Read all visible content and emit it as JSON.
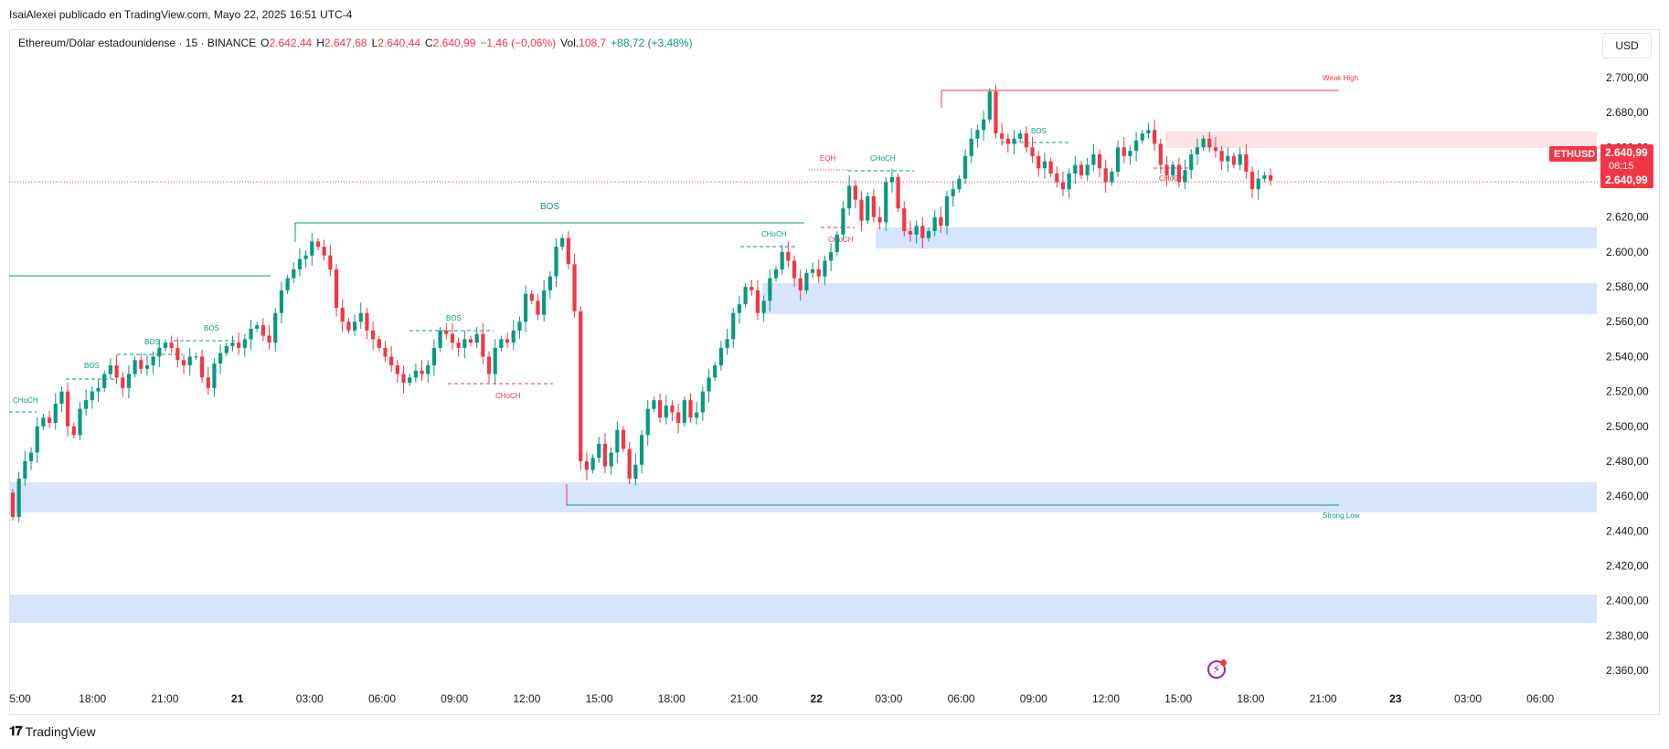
{
  "published": "IsaiAlexei publicado en TradingView.com, Mayo 22, 2025 16:51 UTC-4",
  "legend": {
    "symbol": "Ethereum/Dólar estadounidense · 15 · BINANCE",
    "o_label": "O",
    "o": "2.642,44",
    "h_label": "H",
    "h": "2.647,68",
    "l_label": "L",
    "l": "2.640,44",
    "c_label": "C",
    "c": "2.640,99",
    "change": "−1,46 (−0,06%)",
    "vol_label": "Vol.",
    "vol": "108,7",
    "vol_change": "+88,72 (+3,48%)"
  },
  "currency": "USD",
  "brand": "TradingView",
  "colors": {
    "up": "#089981",
    "down": "#f23645",
    "zone": "#d6e4fd",
    "supply": "#fde2e4",
    "struct": "#089981"
  },
  "price_tag": {
    "ticker": "ETHUSD",
    "price": "2.640,99",
    "countdown": "08:15",
    "last": "2.640,99"
  },
  "chart_data": {
    "type": "candlestick",
    "y_axis": {
      "min": 2350,
      "max": 2710,
      "ticks": [
        2360,
        2380,
        2400,
        2420,
        2440,
        2460,
        2480,
        2500,
        2520,
        2540,
        2560,
        2580,
        2600,
        2620,
        2640,
        2660,
        2680,
        2700
      ]
    },
    "y_tick_labels": [
      "2.360,00",
      "2.380,00",
      "2.400,00",
      "2.420,00",
      "2.440,00",
      "2.460,00",
      "2.480,00",
      "2.500,00",
      "2.520,00",
      "2.540,00",
      "2.560,00",
      "2.580,00",
      "2.600,00",
      "2.620,00",
      "2.640,00",
      "2.660,00",
      "2.680,00",
      "2.700,00"
    ],
    "x_tick_labels": [
      "5:00",
      "18:00",
      "21:00",
      "21",
      "03:00",
      "06:00",
      "09:00",
      "12:00",
      "15:00",
      "18:00",
      "21:00",
      "22",
      "03:00",
      "06:00",
      "09:00",
      "12:00",
      "15:00",
      "18:00",
      "21:00",
      "23",
      "03:00",
      "06:00"
    ],
    "x_tick_bold": [
      false,
      false,
      false,
      true,
      false,
      false,
      false,
      false,
      false,
      false,
      false,
      true,
      false,
      false,
      false,
      false,
      false,
      false,
      false,
      true,
      false,
      false
    ],
    "last_price": 2640.99,
    "closes": [
      2448,
      2470,
      2480,
      2485,
      2500,
      2505,
      2502,
      2513,
      2520,
      2500,
      2495,
      2510,
      2515,
      2520,
      2522,
      2530,
      2535,
      2528,
      2522,
      2530,
      2538,
      2533,
      2535,
      2540,
      2545,
      2548,
      2545,
      2538,
      2535,
      2540,
      2540,
      2528,
      2522,
      2536,
      2542,
      2546,
      2548,
      2545,
      2550,
      2556,
      2558,
      2552,
      2548,
      2565,
      2578,
      2585,
      2590,
      2596,
      2598,
      2606,
      2603,
      2598,
      2590,
      2568,
      2560,
      2555,
      2560,
      2565,
      2555,
      2550,
      2545,
      2540,
      2535,
      2530,
      2525,
      2528,
      2532,
      2530,
      2535,
      2545,
      2555,
      2553,
      2548,
      2545,
      2550,
      2548,
      2553,
      2540,
      2530,
      2545,
      2550,
      2548,
      2555,
      2560,
      2576,
      2572,
      2564,
      2578,
      2586,
      2603,
      2608,
      2593,
      2566,
      2480,
      2475,
      2482,
      2490,
      2477,
      2485,
      2498,
      2487,
      2470,
      2478,
      2495,
      2510,
      2515,
      2505,
      2512,
      2508,
      2502,
      2515,
      2505,
      2508,
      2520,
      2528,
      2535,
      2545,
      2550,
      2565,
      2570,
      2580,
      2578,
      2565,
      2572,
      2585,
      2590,
      2600,
      2595,
      2585,
      2578,
      2588,
      2590,
      2586,
      2595,
      2600,
      2610,
      2625,
      2638,
      2630,
      2618,
      2632,
      2620,
      2617,
      2640,
      2643,
      2625,
      2612,
      2610,
      2615,
      2608,
      2612,
      2620,
      2615,
      2632,
      2636,
      2642,
      2655,
      2665,
      2670,
      2676,
      2692,
      2668,
      2665,
      2662,
      2665,
      2668,
      2660,
      2655,
      2648,
      2652,
      2645,
      2640,
      2636,
      2645,
      2650,
      2644,
      2650,
      2656,
      2648,
      2640,
      2646,
      2660,
      2655,
      2658,
      2664,
      2668,
      2670,
      2662,
      2650,
      2644,
      2650,
      2640,
      2647,
      2656,
      2660,
      2665,
      2660,
      2658,
      2652,
      2655,
      2650,
      2656,
      2646,
      2636,
      2642,
      2644,
      2641
    ]
  },
  "annotations": {
    "bos": "BOS",
    "choch": "CHoCH",
    "eqh": "EQH",
    "weak_high": "Weak High",
    "strong_low": "Strong Low"
  }
}
